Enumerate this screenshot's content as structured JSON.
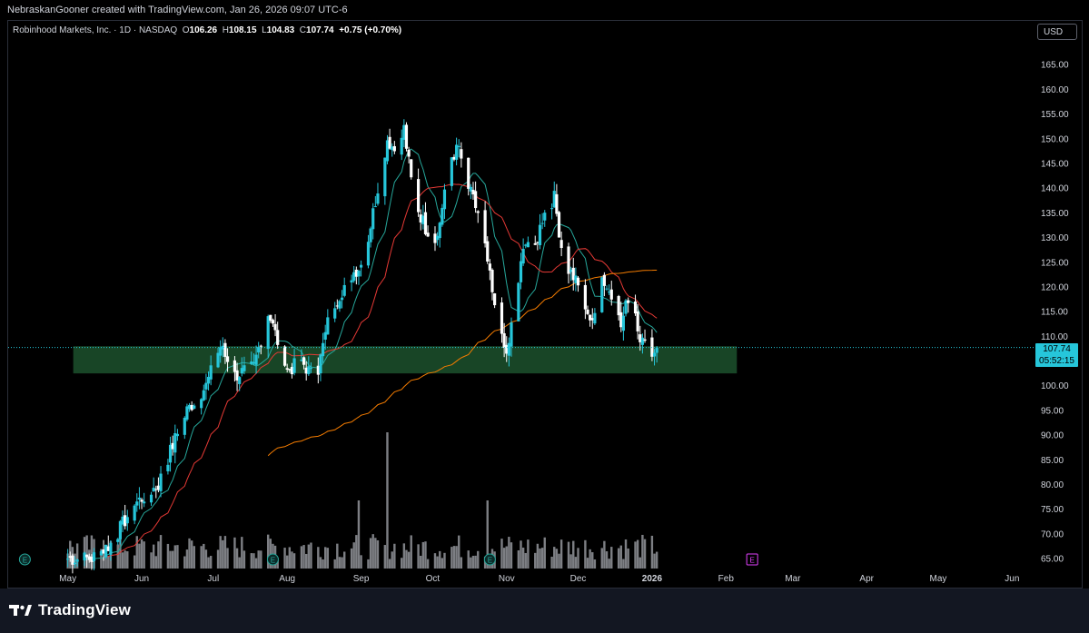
{
  "header": {
    "attribution": "NebraskanGooner created with TradingView.com, Jan 26, 2026 09:07 UTC-6"
  },
  "legend": {
    "symbol": "Robinhood Markets, Inc. · 1D · NASDAQ",
    "o_label": "O",
    "o_value": "106.26",
    "h_label": "H",
    "h_value": "108.15",
    "l_label": "L",
    "l_value": "104.83",
    "c_label": "C",
    "c_value": "107.74",
    "change": "+0.75 (+0.70%)"
  },
  "currency_button": "USD",
  "price_tag": {
    "price": "107.74",
    "countdown": "05:52:15"
  },
  "footer": {
    "brand": "TradingView"
  },
  "colors": {
    "background": "#000000",
    "candle_up": "#26c6da",
    "candle_down": "#ffffff",
    "ema_fast": "#26a69a",
    "ema_mid": "#e53935",
    "ma_slow": "#f57c00",
    "zone_fill": "#1b4d2a",
    "price_line": "#26c6da",
    "earnings_marker": "#26a69a",
    "earnings_future": "#e040fb"
  },
  "chart_data": {
    "type": "candlestick",
    "x_labels": [
      "May",
      "Jun",
      "Jul",
      "Aug",
      "Sep",
      "Oct",
      "Nov",
      "Dec",
      "2026",
      "Feb",
      "Mar",
      "Apr",
      "May",
      "Jun"
    ],
    "y_ticks": [
      "165.00",
      "160.00",
      "155.00",
      "150.00",
      "145.00",
      "140.00",
      "135.00",
      "130.00",
      "125.00",
      "120.00",
      "115.00",
      "110.00",
      "105.00",
      "100.00",
      "95.00",
      "90.00",
      "85.00",
      "80.00",
      "75.00",
      "70.00",
      "65.00"
    ],
    "ylim": [
      63,
      170
    ],
    "last_price": 107.74,
    "zone": {
      "low": 102.5,
      "high": 108.0,
      "end_label": "Feb"
    },
    "earnings_markers": [
      {
        "x_label": "May",
        "letter": "E",
        "status": "past"
      },
      {
        "x_label": "Aug",
        "letter": "E",
        "status": "past"
      },
      {
        "x_label": "Nov",
        "letter": "E",
        "status": "past"
      },
      {
        "x_label": "Feb",
        "letter": "E",
        "status": "upcoming"
      }
    ],
    "price_path_anchors": [
      {
        "day": 0,
        "price": 65
      },
      {
        "day": 10,
        "price": 65
      },
      {
        "day": 18,
        "price": 68
      },
      {
        "day": 28,
        "price": 76
      },
      {
        "day": 38,
        "price": 80
      },
      {
        "day": 44,
        "price": 88
      },
      {
        "day": 50,
        "price": 95
      },
      {
        "day": 58,
        "price": 100
      },
      {
        "day": 64,
        "price": 108
      },
      {
        "day": 70,
        "price": 102
      },
      {
        "day": 78,
        "price": 104
      },
      {
        "day": 84,
        "price": 115
      },
      {
        "day": 92,
        "price": 103
      },
      {
        "day": 98,
        "price": 105
      },
      {
        "day": 104,
        "price": 101
      },
      {
        "day": 110,
        "price": 115
      },
      {
        "day": 118,
        "price": 122
      },
      {
        "day": 124,
        "price": 125
      },
      {
        "day": 130,
        "price": 140
      },
      {
        "day": 134,
        "price": 150
      },
      {
        "day": 138,
        "price": 147
      },
      {
        "day": 141,
        "price": 152
      },
      {
        "day": 145,
        "price": 138
      },
      {
        "day": 150,
        "price": 132
      },
      {
        "day": 155,
        "price": 130
      },
      {
        "day": 160,
        "price": 146
      },
      {
        "day": 164,
        "price": 148
      },
      {
        "day": 168,
        "price": 140
      },
      {
        "day": 172,
        "price": 135
      },
      {
        "day": 176,
        "price": 125
      },
      {
        "day": 180,
        "price": 112
      },
      {
        "day": 184,
        "price": 106
      },
      {
        "day": 188,
        "price": 118
      },
      {
        "day": 192,
        "price": 130
      },
      {
        "day": 196,
        "price": 128
      },
      {
        "day": 200,
        "price": 136
      },
      {
        "day": 204,
        "price": 138
      },
      {
        "day": 208,
        "price": 125
      },
      {
        "day": 212,
        "price": 122
      },
      {
        "day": 216,
        "price": 118
      },
      {
        "day": 220,
        "price": 112
      },
      {
        "day": 224,
        "price": 122
      },
      {
        "day": 228,
        "price": 118
      },
      {
        "day": 232,
        "price": 112
      },
      {
        "day": 236,
        "price": 120
      },
      {
        "day": 240,
        "price": 110
      },
      {
        "day": 244,
        "price": 106
      },
      {
        "day": 247,
        "price": 107.74
      }
    ]
  }
}
